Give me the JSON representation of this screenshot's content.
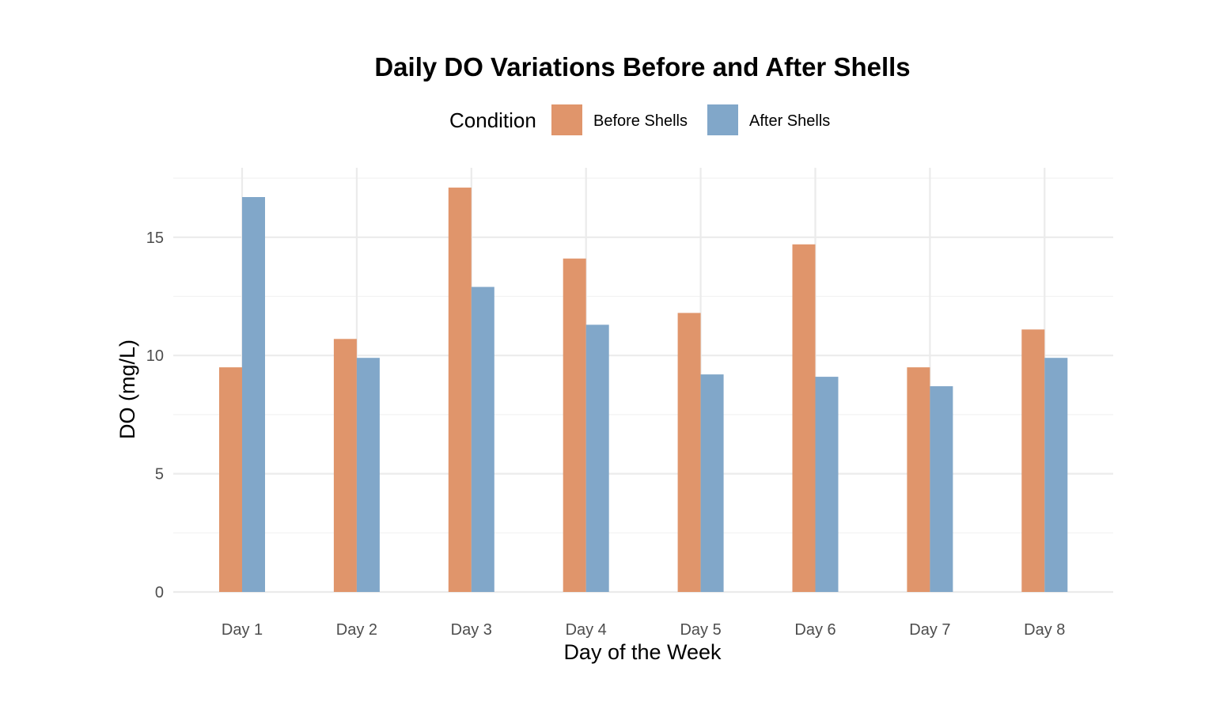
{
  "chart_data": {
    "type": "bar",
    "title": "Daily DO Variations Before and After Shells",
    "xlabel": "Day of the Week",
    "ylabel": "DO (mg/L)",
    "categories": [
      "Day 1",
      "Day 2",
      "Day 3",
      "Day 4",
      "Day 5",
      "Day 6",
      "Day 7",
      "Day 8"
    ],
    "series": [
      {
        "name": "Before Shells",
        "color": "#E0956B",
        "values": [
          9.5,
          10.7,
          17.1,
          14.1,
          11.8,
          14.7,
          9.5,
          11.1
        ]
      },
      {
        "name": "After Shells",
        "color": "#81A7C9",
        "values": [
          16.7,
          9.9,
          12.9,
          11.3,
          9.2,
          9.1,
          8.7,
          9.9
        ]
      }
    ],
    "legend": {
      "title": "Condition",
      "position": "top"
    },
    "ylim": [
      0,
      17.5
    ],
    "yticks": [
      "0",
      "5",
      "10",
      "15"
    ],
    "grid": true
  }
}
